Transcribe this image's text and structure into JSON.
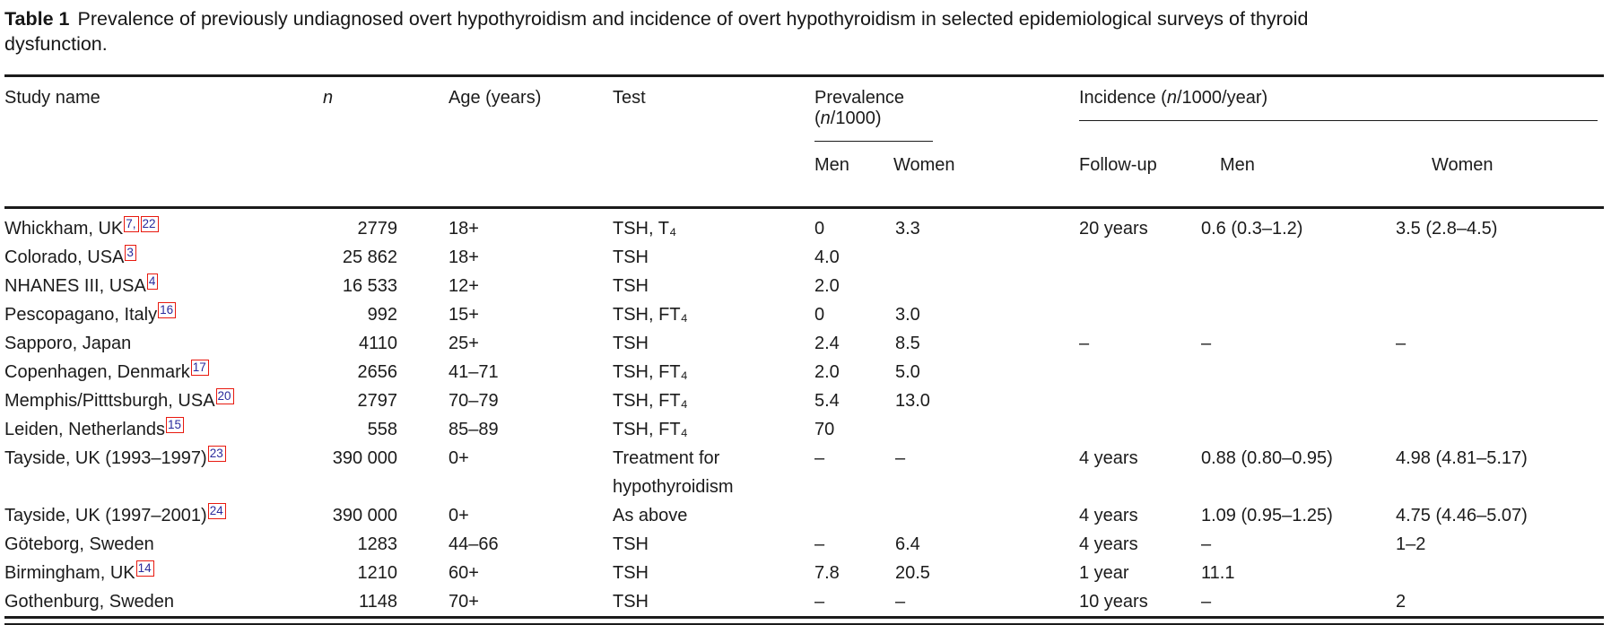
{
  "caption": {
    "label": "Table 1",
    "text": "Prevalence of previously undiagnosed overt hypothyroidism and incidence of overt hypothyroidism in selected epidemiological surveys of thyroid dysfunction."
  },
  "colors": {
    "text": "#1b1b1b",
    "reference_text": "#2b2b9c",
    "reference_box": "#e8190f"
  },
  "header": {
    "study": "Study name",
    "n": "n",
    "age": "Age (years)",
    "test": "Test",
    "prevalence_group": {
      "pre": "Prevalence (",
      "n": "n",
      "post": "/1000)"
    },
    "incidence_group": {
      "pre": "Incidence (",
      "n": "n",
      "post": "/1000/year)"
    },
    "prev_men": "Men",
    "prev_women": "Women",
    "follow_up": "Follow-up",
    "inc_men": "Men",
    "inc_women": "Women"
  },
  "table": {
    "rows": [
      {
        "study": "Whickham, UK",
        "refs": [
          "7,",
          "22"
        ],
        "n": "2779",
        "age": "18+",
        "test": "TSH, T₄",
        "prev_men": "0",
        "prev_women": "3.3",
        "follow_up": "20 years",
        "inc_men": "0.6 (0.3–1.2)",
        "inc_women": "3.5 (2.8–4.5)"
      },
      {
        "study": "Colorado, USA",
        "refs": [
          "3"
        ],
        "n": "25 862",
        "age": "18+",
        "test": "TSH",
        "prev_men": "4.0",
        "prev_women": "",
        "follow_up": "",
        "inc_men": "",
        "inc_women": ""
      },
      {
        "study": "NHANES III, USA",
        "refs": [
          "4"
        ],
        "n": "16 533",
        "age": "12+",
        "test": "TSH",
        "prev_men": "2.0",
        "prev_women": "",
        "follow_up": "",
        "inc_men": "",
        "inc_women": ""
      },
      {
        "study": "Pescopagano, Italy",
        "refs": [
          "16"
        ],
        "n": "992",
        "age": "15+",
        "test": "TSH, FT₄",
        "prev_men": "0",
        "prev_women": "3.0",
        "follow_up": "",
        "inc_men": "",
        "inc_women": ""
      },
      {
        "study": "Sapporo, Japan",
        "refs": [],
        "n": "4110",
        "age": "25+",
        "test": "TSH",
        "prev_men": "2.4",
        "prev_women": "8.5",
        "follow_up": "–",
        "inc_men": "–",
        "inc_women": "–"
      },
      {
        "study": "Copenhagen, Denmark",
        "refs": [
          "17"
        ],
        "n": "2656",
        "age": "41–71",
        "test": "TSH, FT₄",
        "prev_men": "2.0",
        "prev_women": "5.0",
        "follow_up": "",
        "inc_men": "",
        "inc_women": ""
      },
      {
        "study": "Memphis/Pitttsburgh, USA",
        "refs": [
          "20"
        ],
        "n": "2797",
        "age": "70–79",
        "test": "TSH, FT₄",
        "prev_men": "5.4",
        "prev_women": "13.0",
        "follow_up": "",
        "inc_men": "",
        "inc_women": ""
      },
      {
        "study": "Leiden, Netherlands",
        "refs": [
          "15"
        ],
        "n": "558",
        "age": "85–89",
        "test": "TSH, FT₄",
        "prev_men": "70",
        "prev_women": "",
        "follow_up": "",
        "inc_men": "",
        "inc_women": ""
      },
      {
        "study": "Tayside, UK (1993–1997)",
        "refs": [
          "23"
        ],
        "n": "390 000",
        "age": "0+",
        "test": "Treatment for hypothyroidism",
        "prev_men": "–",
        "prev_women": "–",
        "follow_up": "4 years",
        "inc_men": "0.88 (0.80–0.95)",
        "inc_women": "4.98 (4.81–5.17)"
      },
      {
        "study": "Tayside, UK (1997–2001)",
        "refs": [
          "24"
        ],
        "n": "390 000",
        "age": "0+",
        "test": "As above",
        "prev_men": "",
        "prev_women": "",
        "follow_up": "4 years",
        "inc_men": "1.09 (0.95–1.25)",
        "inc_women": "4.75 (4.46–5.07)"
      },
      {
        "study": "Göteborg, Sweden",
        "refs": [],
        "n": "1283",
        "age": "44–66",
        "test": "TSH",
        "prev_men": "–",
        "prev_women": "6.4",
        "follow_up": "4 years",
        "inc_men": "–",
        "inc_women": "1–2"
      },
      {
        "study": "Birmingham, UK",
        "refs": [
          "14"
        ],
        "n": "1210",
        "age": "60+",
        "test": "TSH",
        "prev_men": "7.8",
        "prev_women": "20.5",
        "follow_up": "1 year",
        "inc_men": "11.1",
        "inc_women": ""
      },
      {
        "study": "Gothenburg, Sweden",
        "refs": [],
        "n": "1148",
        "age": "70+",
        "test": "TSH",
        "prev_men": "–",
        "prev_women": "–",
        "follow_up": "10 years",
        "inc_men": "–",
        "inc_women": "2"
      }
    ]
  }
}
